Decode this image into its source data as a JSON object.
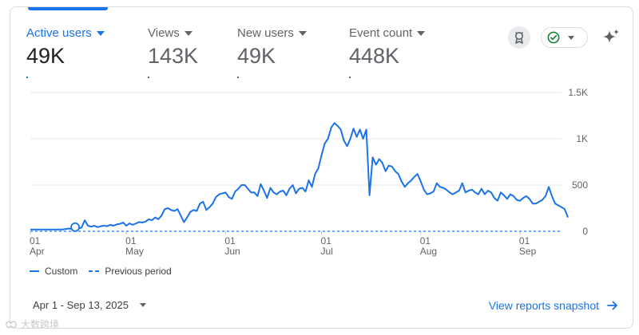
{
  "metrics": [
    {
      "label": "Active users",
      "value": "49K",
      "active": true
    },
    {
      "label": "Views",
      "value": "143K",
      "active": false
    },
    {
      "label": "New users",
      "value": "49K",
      "active": false
    },
    {
      "label": "Event count",
      "value": "448K",
      "active": false
    }
  ],
  "icons": {
    "badge": "ribbon-badge-icon",
    "status": "check-circle-icon",
    "ai": "sparkle-icon",
    "link_arrow": "arrow-right-icon"
  },
  "colors": {
    "accent": "#1a73e8",
    "status_green": "#188038"
  },
  "chart_data": {
    "type": "line",
    "title": "",
    "xlabel": "",
    "ylabel": "",
    "ylim": [
      0,
      1500
    ],
    "yticks": [
      {
        "value": 0,
        "label": "0"
      },
      {
        "value": 500,
        "label": "500"
      },
      {
        "value": 1000,
        "label": "1K"
      },
      {
        "value": 1500,
        "label": "1.5K"
      }
    ],
    "x_range_days": [
      0,
      166
    ],
    "xticks": [
      {
        "day": 0,
        "day_label": "01",
        "month_label": "Apr"
      },
      {
        "day": 30,
        "day_label": "01",
        "month_label": "May"
      },
      {
        "day": 61,
        "day_label": "01",
        "month_label": "Jun"
      },
      {
        "day": 91,
        "day_label": "01",
        "month_label": "Jul"
      },
      {
        "day": 122,
        "day_label": "01",
        "month_label": "Aug"
      },
      {
        "day": 153,
        "day_label": "01",
        "month_label": "Sep"
      }
    ],
    "series": [
      {
        "name": "Custom",
        "style": "solid",
        "x_start": 0,
        "x_step": 1,
        "values": [
          20,
          20,
          20,
          20,
          20,
          20,
          20,
          20,
          20,
          20,
          20,
          25,
          30,
          25,
          45,
          30,
          40,
          120,
          60,
          50,
          60,
          45,
          55,
          60,
          55,
          70,
          60,
          75,
          80,
          95,
          60,
          85,
          70,
          85,
          100,
          95,
          105,
          130,
          120,
          150,
          130,
          170,
          240,
          250,
          230,
          220,
          240,
          170,
          100,
          150,
          210,
          230,
          220,
          300,
          320,
          230,
          260,
          300,
          370,
          400,
          410,
          420,
          370,
          350,
          430,
          460,
          500,
          500,
          460,
          420,
          420,
          380,
          510,
          440,
          360,
          470,
          420,
          400,
          430,
          440,
          390,
          460,
          500,
          410,
          460,
          470,
          430,
          550,
          480,
          620,
          680,
          820,
          950,
          1000,
          1120,
          1170,
          1140,
          1100,
          980,
          920,
          1000,
          1110,
          1020,
          1100,
          1000,
          1100,
          390,
          800,
          720,
          780,
          740,
          650,
          710,
          700,
          650,
          620,
          540,
          480,
          520,
          550,
          590,
          620,
          540,
          450,
          400,
          410,
          430,
          520,
          480,
          470,
          450,
          420,
          400,
          420,
          440,
          520,
          420,
          440,
          450,
          420,
          400,
          460,
          400,
          440,
          420,
          360,
          330,
          420,
          390,
          350,
          400,
          380,
          340,
          330,
          360,
          380,
          350,
          300,
          300,
          320,
          340,
          380,
          480,
          380,
          300,
          280,
          260,
          240,
          150
        ]
      },
      {
        "name": "Previous period",
        "style": "dashed",
        "values": [
          0
        ]
      }
    ],
    "marker_day": 14
  },
  "legend": {
    "custom": "Custom",
    "previous": "Previous period"
  },
  "footer": {
    "date_range": "Apr 1 - Sep 13, 2025",
    "snapshot_link": "View reports snapshot"
  },
  "watermark": "大数跨境"
}
